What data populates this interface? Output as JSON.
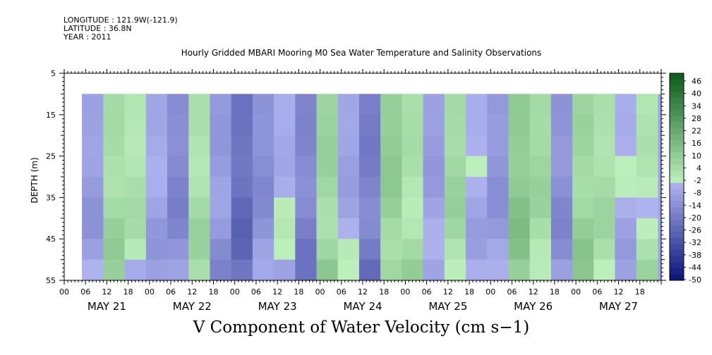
{
  "header": {
    "longitude": "LONGITUDE : 121.9W(-121.9)",
    "latitude": "LATITUDE : 36.8N",
    "year": "YEAR : 2011"
  },
  "chart_data": {
    "type": "heatmap",
    "title": "Hourly Gridded MBARI Mooring M0 Sea Water Temperature and Salinity Observations",
    "xlabel": "V Component of Water Velocity (cm s−1)",
    "ylabel": "DEPTH (m)",
    "ylim": [
      5,
      55
    ],
    "y_ticks": [
      5,
      15,
      25,
      35,
      45,
      55
    ],
    "y_inverted": true,
    "data_depth_range": [
      10,
      55
    ],
    "x_hour_ticks": [
      "00",
      "06",
      "12",
      "18",
      "00",
      "06",
      "12",
      "18",
      "00",
      "06",
      "12",
      "18",
      "00",
      "06",
      "12",
      "18",
      "00",
      "06",
      "12",
      "18",
      "00",
      "06",
      "12",
      "18",
      "00",
      "06",
      "12",
      "18"
    ],
    "x_day_labels": [
      "MAY 21",
      "MAY 22",
      "MAY 23",
      "MAY 24",
      "MAY 25",
      "MAY 26",
      "MAY 27"
    ],
    "xlim_hours": [
      0,
      168
    ],
    "data_start_hour": 5,
    "colorbar": {
      "labels": [
        "46",
        "40",
        "34",
        "28",
        "22",
        "16",
        "10",
        "4",
        "-2",
        "-8",
        "-14",
        "-20",
        "-26",
        "-32",
        "-38",
        "-44",
        "-50"
      ],
      "range": [
        -50,
        52
      ]
    },
    "field_notes": "Negative (blue) dominates; positive (green) bands near May 21 12h, May 24 00h, May 24 18h, May 25 12h, May 26 12h, May 27 06h",
    "columns": [
      {
        "hour": 8,
        "v": -8
      },
      {
        "hour": 14,
        "v": 6
      },
      {
        "hour": 20,
        "v": 2
      },
      {
        "hour": 26,
        "v": -6
      },
      {
        "hour": 32,
        "v": -14
      },
      {
        "hour": 38,
        "v": 4
      },
      {
        "hour": 44,
        "v": -10
      },
      {
        "hour": 50,
        "v": -22
      },
      {
        "hour": 56,
        "v": -12
      },
      {
        "hour": 62,
        "v": -4
      },
      {
        "hour": 68,
        "v": -16
      },
      {
        "hour": 74,
        "v": 8
      },
      {
        "hour": 80,
        "v": -6
      },
      {
        "hour": 86,
        "v": -18
      },
      {
        "hour": 92,
        "v": 10
      },
      {
        "hour": 98,
        "v": 4
      },
      {
        "hour": 104,
        "v": -8
      },
      {
        "hour": 110,
        "v": 6
      },
      {
        "hour": 116,
        "v": -4
      },
      {
        "hour": 122,
        "v": -10
      },
      {
        "hour": 128,
        "v": 12
      },
      {
        "hour": 134,
        "v": 6
      },
      {
        "hour": 140,
        "v": -12
      },
      {
        "hour": 146,
        "v": 8
      },
      {
        "hour": 152,
        "v": 4
      },
      {
        "hour": 158,
        "v": -4
      },
      {
        "hour": 164,
        "v": 2
      }
    ]
  }
}
